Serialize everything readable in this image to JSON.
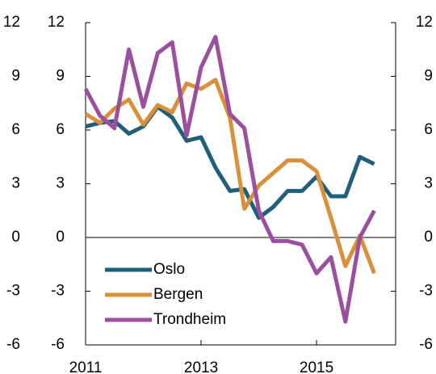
{
  "chart_data": {
    "type": "line",
    "x": [
      2011,
      2011.25,
      2011.5,
      2011.75,
      2012,
      2012.25,
      2012.5,
      2012.75,
      2013,
      2013.25,
      2013.5,
      2013.75,
      2014,
      2014.25,
      2014.5,
      2014.75,
      2015,
      2015.25,
      2015.5,
      2015.75,
      2016
    ],
    "series": [
      {
        "name": "Oslo",
        "color": "#1f5f7a",
        "values": [
          6.2,
          6.4,
          6.5,
          5.8,
          6.2,
          7.3,
          6.7,
          5.4,
          5.6,
          3.9,
          2.6,
          2.7,
          1.1,
          1.7,
          2.6,
          2.6,
          3.4,
          2.3,
          2.3,
          4.5,
          4.1
        ]
      },
      {
        "name": "Bergen",
        "color": "#d9903b",
        "values": [
          6.9,
          6.4,
          7.2,
          7.7,
          6.3,
          7.4,
          7.0,
          8.6,
          8.3,
          8.8,
          6.7,
          1.6,
          2.9,
          3.6,
          4.3,
          4.3,
          3.7,
          1.1,
          -1.6,
          0.1,
          -2.0
        ]
      },
      {
        "name": "Trondheim",
        "color": "#9b4f9e",
        "values": [
          8.3,
          6.8,
          6.1,
          10.5,
          7.3,
          10.3,
          10.9,
          5.7,
          9.5,
          11.2,
          6.9,
          6.1,
          1.5,
          -0.2,
          -0.2,
          -0.4,
          -2.0,
          -1.1,
          -4.7,
          0.0,
          1.5
        ]
      }
    ],
    "xlim": [
      2011,
      2016.37
    ],
    "xticks": [
      2011,
      2013,
      2015
    ],
    "ylim": [
      -6,
      12
    ],
    "yticks": [
      -6,
      -3,
      0,
      3,
      6,
      9,
      12
    ],
    "y2lim": [
      -6,
      12
    ],
    "y2ticks": [
      -6,
      -3,
      0,
      3,
      6,
      9,
      12
    ],
    "legend": "lower left"
  }
}
